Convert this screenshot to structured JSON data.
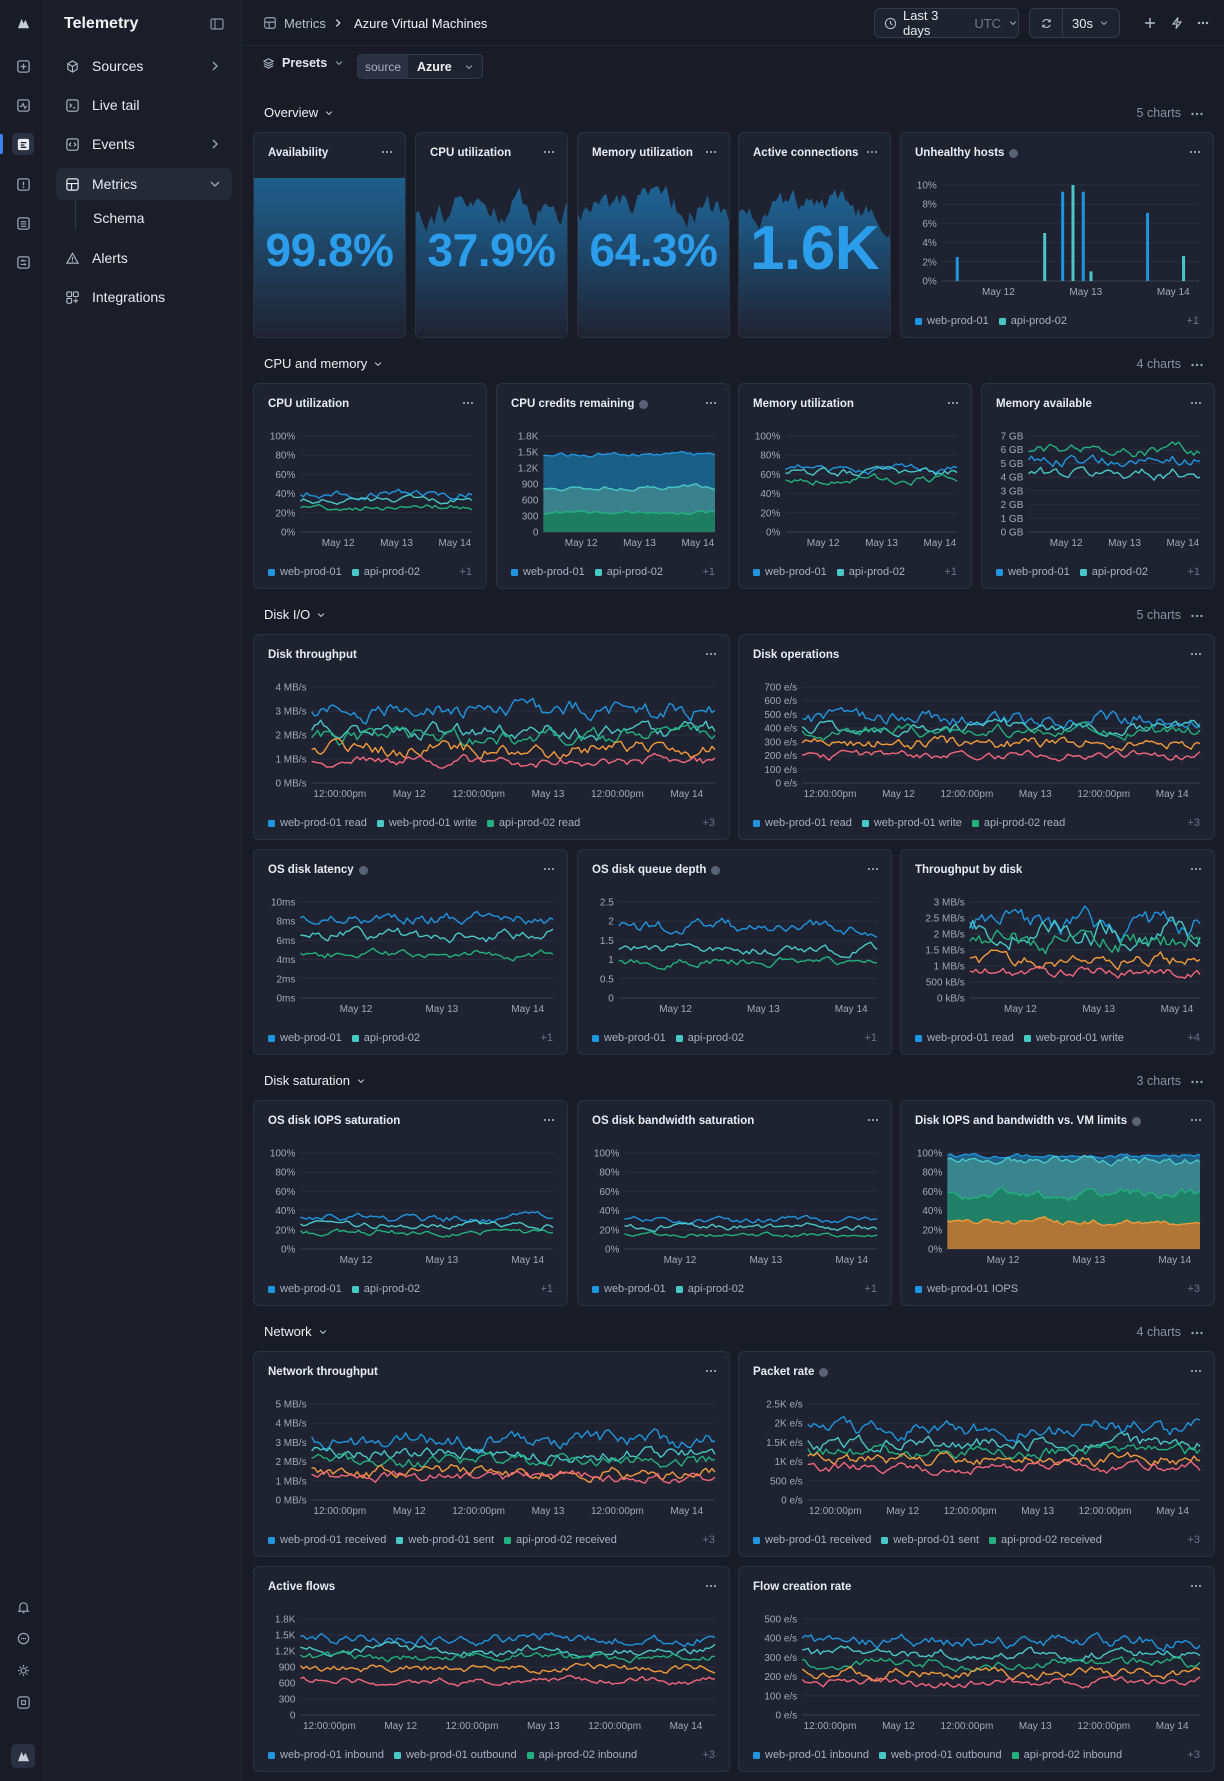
{
  "sidebar": {
    "brand": "Telemetry",
    "items": [
      {
        "label": "Sources"
      },
      {
        "label": "Live tail"
      },
      {
        "label": "Events"
      },
      {
        "label": "Metrics"
      },
      {
        "label": "Alerts"
      },
      {
        "label": "Integrations"
      }
    ],
    "sub_item": "Schema"
  },
  "header": {
    "crumb_root": "Metrics",
    "crumb_current": "Azure Virtual Machines",
    "time_range": "Last 3 days",
    "timezone": "UTC",
    "refresh_interval": "30s"
  },
  "toolbar": {
    "presets_label": "Presets",
    "filter_key": "source",
    "filter_value": "Azure"
  },
  "colors": {
    "blue": "#1f95e0",
    "teal": "#48c7c7",
    "green": "#22b07d",
    "orange": "#f39a3b",
    "red": "#f0677a"
  },
  "legend_more_1": "+1",
  "legend_more_3": "+3",
  "legend_more_4": "+4",
  "sections": {
    "overview": {
      "title": "Overview",
      "count": "5 charts"
    },
    "cpu": {
      "title": "CPU and memory",
      "count": "4 charts"
    },
    "disk": {
      "title": "Disk I/O",
      "count": "5 charts"
    },
    "saturation": {
      "title": "Disk saturation",
      "count": "3 charts"
    },
    "network": {
      "title": "Network",
      "count": "4 charts"
    }
  },
  "stats": {
    "availability": {
      "title": "Availability",
      "value": "99.8%"
    },
    "cpu": {
      "title": "CPU utilization",
      "value": "37.9%"
    },
    "memory": {
      "title": "Memory utilization",
      "value": "64.3%"
    },
    "connections": {
      "title": "Active connections",
      "value": "1.6K"
    }
  },
  "legend_names": {
    "web": "web-prod-01",
    "api": "api-prod-02",
    "web_read": "web-prod-01 read",
    "web_write": "web-prod-01 write",
    "api_read": "api-prod-02 read",
    "web_iops": "web-prod-01 IOPS",
    "web_received": "web-prod-01 received",
    "web_sent": "web-prod-01 sent",
    "api_received": "api-prod-02 received",
    "web_inbound": "web-prod-01 inbound",
    "web_outbound": "web-prod-01 outbound",
    "api_inbound": "api-prod-02 inbound"
  },
  "chart_data": [
    {
      "id": "unhealthy",
      "title": "Unhealthy hosts",
      "type": "bar",
      "yticks": [
        "10%",
        "8%",
        "6%",
        "4%",
        "2%",
        "0%"
      ],
      "ylim": [
        0,
        10
      ],
      "x": [
        0.06,
        0.4,
        0.47,
        0.51,
        0.55,
        0.58,
        0.8,
        0.94
      ],
      "values": [
        2.5,
        5,
        9.3,
        10,
        9.3,
        1,
        7.1,
        2.6
      ],
      "xticks": [
        "May 12",
        "May 13",
        "May 14"
      ],
      "legend": [
        "web-prod-01",
        "api-prod-02"
      ]
    },
    {
      "id": "cpu_util",
      "title": "CPU utilization",
      "type": "line",
      "yticks": [
        "100%",
        "80%",
        "60%",
        "40%",
        "20%",
        "0%"
      ],
      "ylim": [
        0,
        100
      ],
      "xticks": [
        "May 12",
        "May 13",
        "May 14"
      ],
      "series": [
        {
          "name": "web-prod-01",
          "mean": 40,
          "amp": 4
        },
        {
          "name": "api-prod-02",
          "mean": 33,
          "amp": 3
        },
        {
          "mean": 26,
          "amp": 3
        }
      ]
    },
    {
      "id": "cpu_credits",
      "title": "CPU credits remaining",
      "type": "area",
      "yticks": [
        "1.8K",
        "1.5K",
        "1.2K",
        "900",
        "600",
        "300",
        "0"
      ],
      "ylim": [
        0,
        1800
      ],
      "xticks": [
        "May 12",
        "May 13",
        "May 14"
      ],
      "series": [
        {
          "name": "web-prod-01",
          "mean": 1450,
          "amp": 40
        },
        {
          "name": "api-prod-02",
          "mean": 830,
          "amp": 40
        },
        {
          "mean": 360,
          "amp": 30
        }
      ]
    },
    {
      "id": "mem_util",
      "title": "Memory utilization",
      "type": "line",
      "yticks": [
        "100%",
        "80%",
        "60%",
        "40%",
        "20%",
        "0%"
      ],
      "ylim": [
        0,
        100
      ],
      "xticks": [
        "May 12",
        "May 13",
        "May 14"
      ],
      "series": [
        {
          "name": "web-prod-01",
          "mean": 66,
          "amp": 4
        },
        {
          "name": "api-prod-02",
          "mean": 62,
          "amp": 4
        },
        {
          "mean": 55,
          "amp": 4
        }
      ]
    },
    {
      "id": "mem_avail",
      "title": "Memory available",
      "type": "line",
      "yticks": [
        "7 GB",
        "6 GB",
        "5 GB",
        "4 GB",
        "3 GB",
        "2 GB",
        "1 GB",
        "0 GB"
      ],
      "ylim": [
        0,
        7
      ],
      "xticks": [
        "May 12",
        "May 13",
        "May 14"
      ],
      "series": [
        {
          "name": "web-prod-01",
          "mean": 5.3,
          "amp": 0.4
        },
        {
          "name": "api-prod-02",
          "mean": 4.3,
          "amp": 0.4
        },
        {
          "mean": 5.9,
          "amp": 0.4
        }
      ]
    },
    {
      "id": "disk_tp",
      "title": "Disk throughput",
      "type": "line",
      "yticks": [
        "4 MB/s",
        "3 MB/s",
        "2 MB/s",
        "1 MB/s",
        "0 MB/s"
      ],
      "ylim": [
        0,
        4
      ],
      "xticks": [
        "12:00:00pm",
        "May 12",
        "12:00:00pm",
        "May 13",
        "12:00:00pm",
        "May 14"
      ],
      "series": [
        {
          "name": "web-prod-01 read",
          "mean": 3.0,
          "amp": 0.35
        },
        {
          "name": "web-prod-01 write",
          "mean": 2.2,
          "amp": 0.3
        },
        {
          "name": "api-prod-02 read",
          "mean": 1.9,
          "amp": 0.3
        },
        {
          "mean": 1.4,
          "amp": 0.3
        },
        {
          "mean": 0.9,
          "amp": 0.2
        }
      ]
    },
    {
      "id": "disk_ops",
      "title": "Disk operations",
      "type": "line",
      "yticks": [
        "700 e/s",
        "600 e/s",
        "500 e/s",
        "400 e/s",
        "300 e/s",
        "200 e/s",
        "100 e/s",
        "0 e/s"
      ],
      "ylim": [
        0,
        700
      ],
      "xticks": [
        "12:00:00pm",
        "May 12",
        "12:00:00pm",
        "May 13",
        "12:00:00pm",
        "May 14"
      ],
      "series": [
        {
          "name": "web-prod-01 read",
          "mean": 470,
          "amp": 50
        },
        {
          "name": "web-prod-01 write",
          "mean": 410,
          "amp": 40
        },
        {
          "name": "api-prod-02 read",
          "mean": 380,
          "amp": 40
        },
        {
          "mean": 290,
          "amp": 40
        },
        {
          "mean": 200,
          "amp": 30
        }
      ]
    },
    {
      "id": "os_lat",
      "title": "OS disk latency",
      "type": "line",
      "yticks": [
        "10ms",
        "8ms",
        "6ms",
        "4ms",
        "2ms",
        "0ms"
      ],
      "ylim": [
        0,
        10
      ],
      "xticks": [
        "May 12",
        "May 13",
        "May 14"
      ],
      "series": [
        {
          "name": "web-prod-01",
          "mean": 8.3,
          "amp": 0.6
        },
        {
          "name": "api-prod-02",
          "mean": 6.5,
          "amp": 0.6
        },
        {
          "mean": 4.6,
          "amp": 0.4
        }
      ]
    },
    {
      "id": "os_queue",
      "title": "OS disk queue depth",
      "type": "line",
      "yticks": [
        "2.5",
        "2",
        "1.5",
        "1",
        "0.5",
        "0"
      ],
      "ylim": [
        0,
        2.5
      ],
      "xticks": [
        "May 12",
        "May 13",
        "May 14"
      ],
      "series": [
        {
          "name": "web-prod-01",
          "mean": 1.85,
          "amp": 0.15
        },
        {
          "name": "api-prod-02",
          "mean": 1.25,
          "amp": 0.12
        },
        {
          "mean": 0.95,
          "amp": 0.1
        }
      ]
    },
    {
      "id": "tp_by_disk",
      "title": "Throughput by disk",
      "type": "line",
      "yticks": [
        "3 MB/s",
        "2.5 MB/s",
        "2 MB/s",
        "1.5 MB/s",
        "1 MB/s",
        "500 kB/s",
        "0 kB/s"
      ],
      "ylim": [
        0,
        3
      ],
      "xticks": [
        "May 12",
        "May 13",
        "May 14"
      ],
      "series": [
        {
          "name": "web-prod-01 read",
          "mean": 2.3,
          "amp": 0.35
        },
        {
          "name": "web-prod-01 write",
          "mean": 2.1,
          "amp": 0.35
        },
        {
          "mean": 1.7,
          "amp": 0.3
        },
        {
          "mean": 1.2,
          "amp": 0.2
        },
        {
          "mean": 0.8,
          "amp": 0.15
        }
      ]
    },
    {
      "id": "iops_sat",
      "title": "OS disk IOPS saturation",
      "type": "line",
      "yticks": [
        "100%",
        "80%",
        "60%",
        "40%",
        "20%",
        "0%"
      ],
      "ylim": [
        0,
        100
      ],
      "xticks": [
        "May 12",
        "May 13",
        "May 14"
      ],
      "series": [
        {
          "name": "web-prod-01",
          "mean": 32,
          "amp": 4
        },
        {
          "name": "api-prod-02",
          "mean": 25,
          "amp": 3
        },
        {
          "mean": 18,
          "amp": 3
        }
      ]
    },
    {
      "id": "bw_sat",
      "title": "OS disk bandwidth saturation",
      "type": "line",
      "yticks": [
        "100%",
        "80%",
        "60%",
        "40%",
        "20%",
        "0%"
      ],
      "ylim": [
        0,
        100
      ],
      "xticks": [
        "May 12",
        "May 13",
        "May 14"
      ],
      "series": [
        {
          "name": "web-prod-01",
          "mean": 30,
          "amp": 3
        },
        {
          "name": "api-prod-02",
          "mean": 23,
          "amp": 3
        },
        {
          "mean": 15,
          "amp": 2
        }
      ]
    },
    {
      "id": "vm_limits",
      "title": "Disk IOPS and bandwidth vs. VM limits",
      "type": "area",
      "yticks": [
        "100%",
        "80%",
        "60%",
        "40%",
        "20%",
        "0%"
      ],
      "ylim": [
        0,
        100
      ],
      "xticks": [
        "May 12",
        "May 13",
        "May 14"
      ],
      "series": [
        {
          "name": "web-prod-01 IOPS",
          "mean": 97,
          "amp": 2
        },
        {
          "mean": 92,
          "amp": 4
        },
        {
          "mean": 57,
          "amp": 5
        },
        {
          "mean": 28,
          "amp": 3
        }
      ]
    },
    {
      "id": "net_tp",
      "title": "Network throughput",
      "type": "line",
      "yticks": [
        "5 MB/s",
        "4 MB/s",
        "3 MB/s",
        "2 MB/s",
        "1 MB/s",
        "0 MB/s"
      ],
      "ylim": [
        0,
        5
      ],
      "xticks": [
        "12:00:00pm",
        "May 12",
        "12:00:00pm",
        "May 13",
        "12:00:00pm",
        "May 14"
      ],
      "series": [
        {
          "name": "web-prod-01 received",
          "mean": 3.1,
          "amp": 0.4
        },
        {
          "name": "web-prod-01 sent",
          "mean": 2.4,
          "amp": 0.3
        },
        {
          "name": "api-prod-02 received",
          "mean": 2.0,
          "amp": 0.3
        },
        {
          "mean": 1.5,
          "amp": 0.3
        },
        {
          "mean": 1.2,
          "amp": 0.25
        }
      ]
    },
    {
      "id": "pkt_rate",
      "title": "Packet rate",
      "type": "line",
      "yticks": [
        "2.5K e/s",
        "2K e/s",
        "1.5K e/s",
        "1K e/s",
        "500 e/s",
        "0 e/s"
      ],
      "ylim": [
        0,
        2500
      ],
      "xticks": [
        "12:00:00pm",
        "May 12",
        "12:00:00pm",
        "May 13",
        "12:00:00pm",
        "May 14"
      ],
      "series": [
        {
          "name": "web-prod-01 received",
          "mean": 1850,
          "amp": 200
        },
        {
          "name": "web-prod-01 sent",
          "mean": 1450,
          "amp": 170
        },
        {
          "name": "api-prod-02 received",
          "mean": 1250,
          "amp": 150
        },
        {
          "mean": 1050,
          "amp": 150
        },
        {
          "mean": 850,
          "amp": 120
        }
      ]
    },
    {
      "id": "act_flows",
      "title": "Active flows",
      "type": "line",
      "yticks": [
        "1.8K",
        "1.5K",
        "1.2K",
        "900",
        "600",
        "300",
        "0"
      ],
      "ylim": [
        0,
        1800
      ],
      "xticks": [
        "12:00:00pm",
        "May 12",
        "12:00:00pm",
        "May 13",
        "12:00:00pm",
        "May 14"
      ],
      "series": [
        {
          "name": "web-prod-01 inbound",
          "mean": 1420,
          "amp": 90
        },
        {
          "name": "web-prod-01 outbound",
          "mean": 1220,
          "amp": 80
        },
        {
          "name": "api-prod-02 inbound",
          "mean": 1080,
          "amp": 70
        },
        {
          "mean": 880,
          "amp": 70
        },
        {
          "mean": 640,
          "amp": 60
        }
      ]
    },
    {
      "id": "flow_rate",
      "title": "Flow creation rate",
      "type": "line",
      "yticks": [
        "500 e/s",
        "400 e/s",
        "300 e/s",
        "200 e/s",
        "100 e/s",
        "0 e/s"
      ],
      "ylim": [
        0,
        500
      ],
      "xticks": [
        "12:00:00pm",
        "May 12",
        "12:00:00pm",
        "May 13",
        "12:00:00pm",
        "May 14"
      ],
      "series": [
        {
          "name": "web-prod-01 inbound",
          "mean": 380,
          "amp": 30
        },
        {
          "name": "web-prod-01 outbound",
          "mean": 320,
          "amp": 25
        },
        {
          "name": "api-prod-02 inbound",
          "mean": 270,
          "amp": 25
        },
        {
          "mean": 220,
          "amp": 25
        },
        {
          "mean": 170,
          "amp": 20
        }
      ]
    }
  ]
}
